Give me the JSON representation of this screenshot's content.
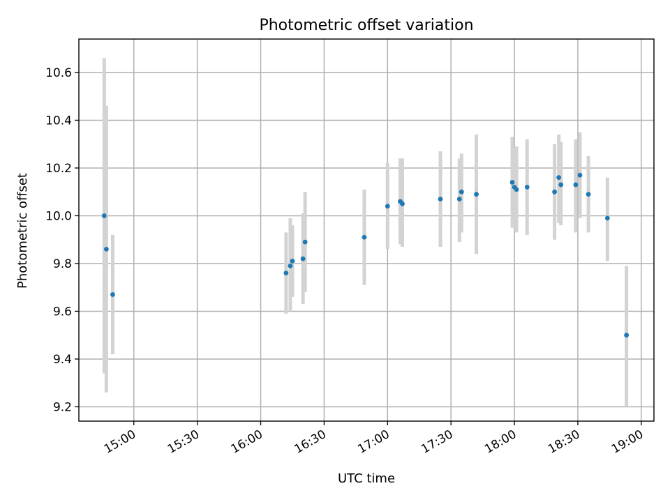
{
  "chart_data": {
    "type": "scatter",
    "title": "Photometric offset variation",
    "xlabel": "UTC time",
    "ylabel": "Photometric offset",
    "x_unit": "minutes_of_day_UTC",
    "xlim": [
      "14:34",
      "19:06"
    ],
    "ylim": [
      9.14,
      10.74
    ],
    "xticks": [
      "15:00",
      "15:30",
      "16:00",
      "16:30",
      "17:00",
      "17:30",
      "18:00",
      "18:30",
      "19:00"
    ],
    "yticks": [
      "9.2",
      "9.4",
      "9.6",
      "9.8",
      "10.0",
      "10.2",
      "10.4",
      "10.6"
    ],
    "grid": true,
    "colors": {
      "point": "#1f77b4",
      "errorbar": "#d3d3d3"
    },
    "series": [
      {
        "marker": "point-with-errorbar",
        "points": [
          {
            "x": "14:46",
            "y": 10.0,
            "yerr_low": 9.34,
            "yerr_high": 10.66
          },
          {
            "x": "14:47",
            "y": 9.86,
            "yerr_low": 9.26,
            "yerr_high": 10.46
          },
          {
            "x": "14:50",
            "y": 9.67,
            "yerr_low": 9.42,
            "yerr_high": 9.92
          },
          {
            "x": "16:12",
            "y": 9.76,
            "yerr_low": 9.59,
            "yerr_high": 9.93
          },
          {
            "x": "16:14",
            "y": 9.79,
            "yerr_low": 9.6,
            "yerr_high": 9.99
          },
          {
            "x": "16:15",
            "y": 9.81,
            "yerr_low": 9.66,
            "yerr_high": 9.96
          },
          {
            "x": "16:20",
            "y": 9.82,
            "yerr_low": 9.63,
            "yerr_high": 10.01
          },
          {
            "x": "16:21",
            "y": 9.89,
            "yerr_low": 9.68,
            "yerr_high": 10.1
          },
          {
            "x": "16:49",
            "y": 9.91,
            "yerr_low": 9.71,
            "yerr_high": 10.11
          },
          {
            "x": "17:00",
            "y": 10.04,
            "yerr_low": 9.86,
            "yerr_high": 10.22
          },
          {
            "x": "17:06",
            "y": 10.06,
            "yerr_low": 9.88,
            "yerr_high": 10.24
          },
          {
            "x": "17:07",
            "y": 10.05,
            "yerr_low": 9.87,
            "yerr_high": 10.24
          },
          {
            "x": "17:25",
            "y": 10.07,
            "yerr_low": 9.87,
            "yerr_high": 10.27
          },
          {
            "x": "17:34",
            "y": 10.07,
            "yerr_low": 9.89,
            "yerr_high": 10.24
          },
          {
            "x": "17:35",
            "y": 10.1,
            "yerr_low": 9.93,
            "yerr_high": 10.26
          },
          {
            "x": "17:42",
            "y": 10.09,
            "yerr_low": 9.84,
            "yerr_high": 10.34
          },
          {
            "x": "17:59",
            "y": 10.14,
            "yerr_low": 9.95,
            "yerr_high": 10.33
          },
          {
            "x": "18:00",
            "y": 10.12,
            "yerr_low": 9.95,
            "yerr_high": 10.29
          },
          {
            "x": "18:01",
            "y": 10.11,
            "yerr_low": 9.93,
            "yerr_high": 10.29
          },
          {
            "x": "18:06",
            "y": 10.12,
            "yerr_low": 9.92,
            "yerr_high": 10.32
          },
          {
            "x": "18:19",
            "y": 10.1,
            "yerr_low": 9.9,
            "yerr_high": 10.3
          },
          {
            "x": "18:21",
            "y": 10.16,
            "yerr_low": 9.97,
            "yerr_high": 10.34
          },
          {
            "x": "18:22",
            "y": 10.13,
            "yerr_low": 9.96,
            "yerr_high": 10.31
          },
          {
            "x": "18:29",
            "y": 10.13,
            "yerr_low": 9.93,
            "yerr_high": 10.32
          },
          {
            "x": "18:31",
            "y": 10.17,
            "yerr_low": 9.99,
            "yerr_high": 10.35
          },
          {
            "x": "18:35",
            "y": 10.09,
            "yerr_low": 9.93,
            "yerr_high": 10.25
          },
          {
            "x": "18:44",
            "y": 9.99,
            "yerr_low": 9.81,
            "yerr_high": 10.16
          },
          {
            "x": "18:53",
            "y": 9.5,
            "yerr_low": 9.2,
            "yerr_high": 9.79
          }
        ]
      }
    ]
  }
}
